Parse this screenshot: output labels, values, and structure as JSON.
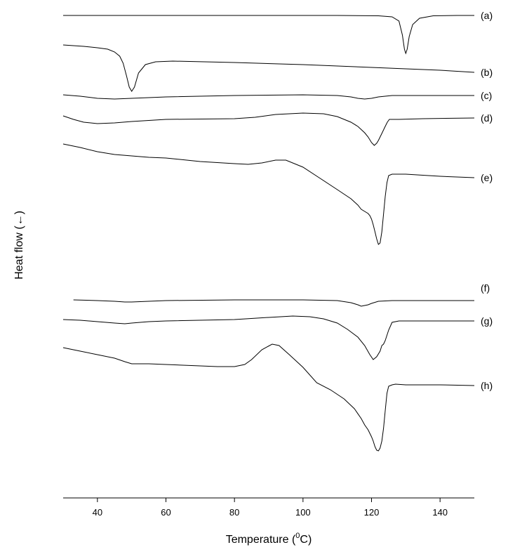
{
  "chart_data": {
    "type": "line",
    "xlabel": "Temperature (",
    "xlabel_sup": "0",
    "xlabel_end": "C)",
    "ylabel": "Heat flow (←)",
    "xlim": [
      30,
      150
    ],
    "xticks": [
      40,
      60,
      80,
      100,
      120,
      140
    ],
    "yticks": [],
    "grid": false,
    "y_units": "arbitrary (stacked offsets, heat flow increasing upward)",
    "series": [
      {
        "name": "(a)",
        "x": [
          30,
          60,
          90,
          110,
          122,
          126,
          128,
          129,
          129.6,
          130,
          130.4,
          131,
          132,
          134,
          138,
          145,
          150
        ],
        "y": [
          22,
          22,
          22,
          22,
          22.5,
          24,
          30,
          50,
          70,
          76,
          70,
          52,
          35,
          26,
          22.5,
          22,
          22
        ]
      },
      {
        "name": "(b)",
        "x": [
          30,
          36,
          40,
          43,
          45,
          46.5,
          47.5,
          48.5,
          49.3,
          50,
          50.8,
          52,
          54,
          57,
          62,
          80,
          100,
          120,
          140,
          150
        ],
        "y": [
          64,
          66,
          68,
          70,
          74,
          80,
          90,
          108,
          124,
          130,
          124,
          104,
          92,
          88,
          87,
          89,
          92,
          96,
          100,
          103
        ]
      },
      {
        "name": "(c)",
        "x": [
          30,
          35,
          40,
          45,
          50,
          55,
          60,
          80,
          100,
          110,
          114,
          116,
          118,
          120,
          122,
          126,
          135,
          150
        ],
        "y": [
          135,
          137,
          140,
          141,
          140,
          139,
          138,
          136,
          135,
          136,
          138,
          140,
          141,
          140,
          138,
          136,
          136,
          136
        ]
      },
      {
        "name": "(d)",
        "x": [
          30,
          33,
          36,
          40,
          45,
          50,
          60,
          80,
          86,
          92,
          100,
          106,
          110,
          114,
          116,
          118,
          119,
          120,
          120.8,
          121.5,
          122,
          123,
          124,
          124.6,
          125.2,
          126,
          128,
          135,
          150
        ],
        "y": [
          165,
          170,
          174,
          176,
          175,
          173,
          170,
          169,
          167,
          163,
          161,
          162,
          166,
          174,
          180,
          189,
          195,
          203,
          207,
          204,
          200,
          190,
          180,
          174,
          170,
          170,
          170,
          169,
          168
        ]
      },
      {
        "name": "(e)",
        "x": [
          30,
          35,
          40,
          45,
          50,
          55,
          60,
          70,
          80,
          84,
          88,
          92,
          95,
          100,
          105,
          110,
          114,
          116,
          117,
          118,
          119,
          119.5,
          120,
          120.5,
          121,
          121.5,
          122,
          122.5,
          123,
          123.5,
          124,
          124.5,
          125,
          126,
          127,
          130,
          140,
          150
        ],
        "y": [
          205,
          210,
          216,
          220,
          222,
          224,
          225,
          230,
          233,
          234,
          232,
          228,
          228,
          238,
          254,
          270,
          283,
          292,
          298,
          301,
          304,
          307,
          312,
          320,
          330,
          340,
          348,
          346,
          330,
          305,
          280,
          260,
          250,
          248,
          248,
          248,
          251,
          253
        ]
      },
      {
        "name": "(f)",
        "x": [
          33,
          40,
          45,
          48,
          50,
          55,
          60,
          80,
          100,
          110,
          114,
          116,
          117,
          118,
          119,
          120,
          122,
          126,
          135,
          150
        ],
        "y": [
          427,
          428,
          429,
          430,
          430,
          429,
          428,
          427,
          427,
          428,
          431,
          434,
          436,
          435,
          434,
          432,
          429,
          428,
          428,
          428
        ]
      },
      {
        "name": "(g)",
        "x": [
          30,
          35,
          40,
          45,
          48,
          50,
          55,
          60,
          80,
          90,
          97,
          102,
          106,
          110,
          113,
          116,
          118,
          119.5,
          120.5,
          121.5,
          122.5,
          123,
          123.5,
          124,
          125,
          126,
          128,
          135,
          150
        ],
        "y": [
          455,
          456,
          458,
          460,
          461,
          460,
          458,
          457,
          455,
          452,
          450,
          451,
          454,
          460,
          469,
          480,
          492,
          505,
          512,
          508,
          500,
          492,
          490,
          485,
          470,
          459,
          457,
          457,
          457
        ]
      },
      {
        "name": "(h)",
        "x": [
          30,
          35,
          40,
          45,
          48,
          50,
          55,
          60,
          70,
          75,
          80,
          83,
          85,
          88,
          91,
          93,
          96,
          100,
          104,
          108,
          112,
          115,
          117,
          118,
          119,
          120,
          120.5,
          121,
          121.5,
          122,
          122.5,
          123,
          123.5,
          124,
          124.5,
          125,
          126,
          127,
          130,
          140,
          150
        ],
        "y": [
          495,
          500,
          505,
          510,
          515,
          518,
          518,
          519,
          521,
          522,
          522,
          519,
          512,
          498,
          490,
          492,
          505,
          523,
          545,
          555,
          568,
          582,
          596,
          605,
          612,
          622,
          628,
          636,
          641,
          642,
          638,
          628,
          610,
          585,
          560,
          550,
          548,
          547,
          548,
          548,
          549
        ]
      }
    ]
  }
}
